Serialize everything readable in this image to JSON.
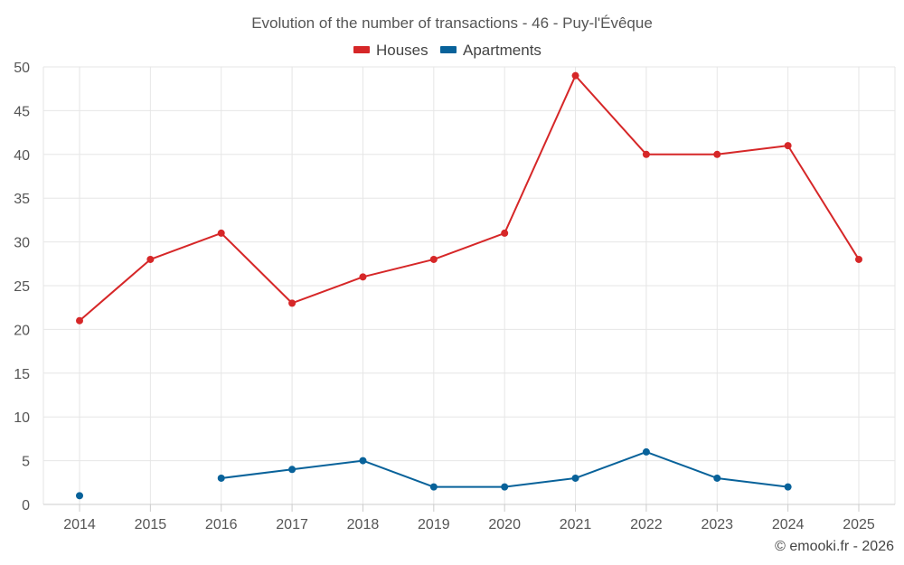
{
  "chart_data": {
    "type": "line",
    "title": "Evolution of the number of transactions - 46 - Puy-l'Évêque",
    "credit": "© emooki.fr - 2026",
    "categories": [
      "2014",
      "2015",
      "2016",
      "2017",
      "2018",
      "2019",
      "2020",
      "2021",
      "2022",
      "2023",
      "2024",
      "2025"
    ],
    "y_ticks": [
      "0",
      "5",
      "10",
      "15",
      "20",
      "25",
      "30",
      "35",
      "40",
      "45",
      "50"
    ],
    "ylim": [
      0,
      50
    ],
    "grid": true,
    "legend_position": "top-center",
    "series": [
      {
        "name": "Houses",
        "color": "#d62728",
        "values": [
          21,
          28,
          31,
          23,
          26,
          28,
          31,
          49,
          40,
          40,
          41,
          28
        ]
      },
      {
        "name": "Apartments",
        "color": "#08629a",
        "values": [
          1,
          null,
          3,
          4,
          5,
          2,
          2,
          3,
          6,
          3,
          2,
          null
        ]
      }
    ]
  }
}
